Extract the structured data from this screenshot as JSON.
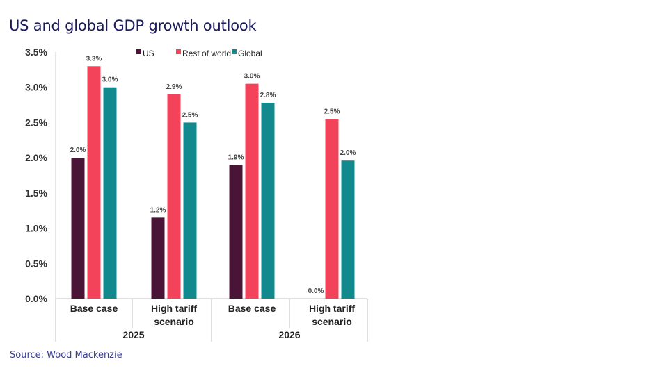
{
  "title": "US and global GDP growth outlook",
  "source": "Source: Wood Mackenzie",
  "colors": {
    "US": "#4a1436",
    "Rest of world": "#f2435a",
    "Global": "#12898c",
    "title": "#1a1a5e"
  },
  "chart_data": {
    "type": "bar",
    "title": "US and global GDP growth outlook",
    "xlabel": "",
    "ylabel": "",
    "ylim": [
      0,
      3.5
    ],
    "yticks": [
      "0.0%",
      "0.5%",
      "1.0%",
      "1.5%",
      "2.0%",
      "2.5%",
      "3.0%",
      "3.5%"
    ],
    "categories": [
      {
        "label": [
          "Base case"
        ],
        "group": "2025"
      },
      {
        "label": [
          "High tariff",
          "scenario"
        ],
        "group": "2025"
      },
      {
        "label": [
          "Base case"
        ],
        "group": "2026"
      },
      {
        "label": [
          "High tariff",
          "scenario"
        ],
        "group": "2026"
      }
    ],
    "groups": [
      "2025",
      "2026"
    ],
    "legend_position": "top",
    "series": [
      {
        "name": "US",
        "values": [
          2.0,
          1.15,
          1.9,
          0.0
        ],
        "labels": [
          "2.0%",
          "1.2%",
          "1.9%",
          "0.0%"
        ]
      },
      {
        "name": "Rest of world",
        "values": [
          3.3,
          2.9,
          3.05,
          2.55
        ],
        "labels": [
          "3.3%",
          "2.9%",
          "3.0%",
          "2.5%"
        ]
      },
      {
        "name": "Global",
        "values": [
          3.0,
          2.5,
          2.78,
          1.96
        ],
        "labels": [
          "3.0%",
          "2.5%",
          "2.8%",
          "2.0%"
        ]
      }
    ]
  }
}
